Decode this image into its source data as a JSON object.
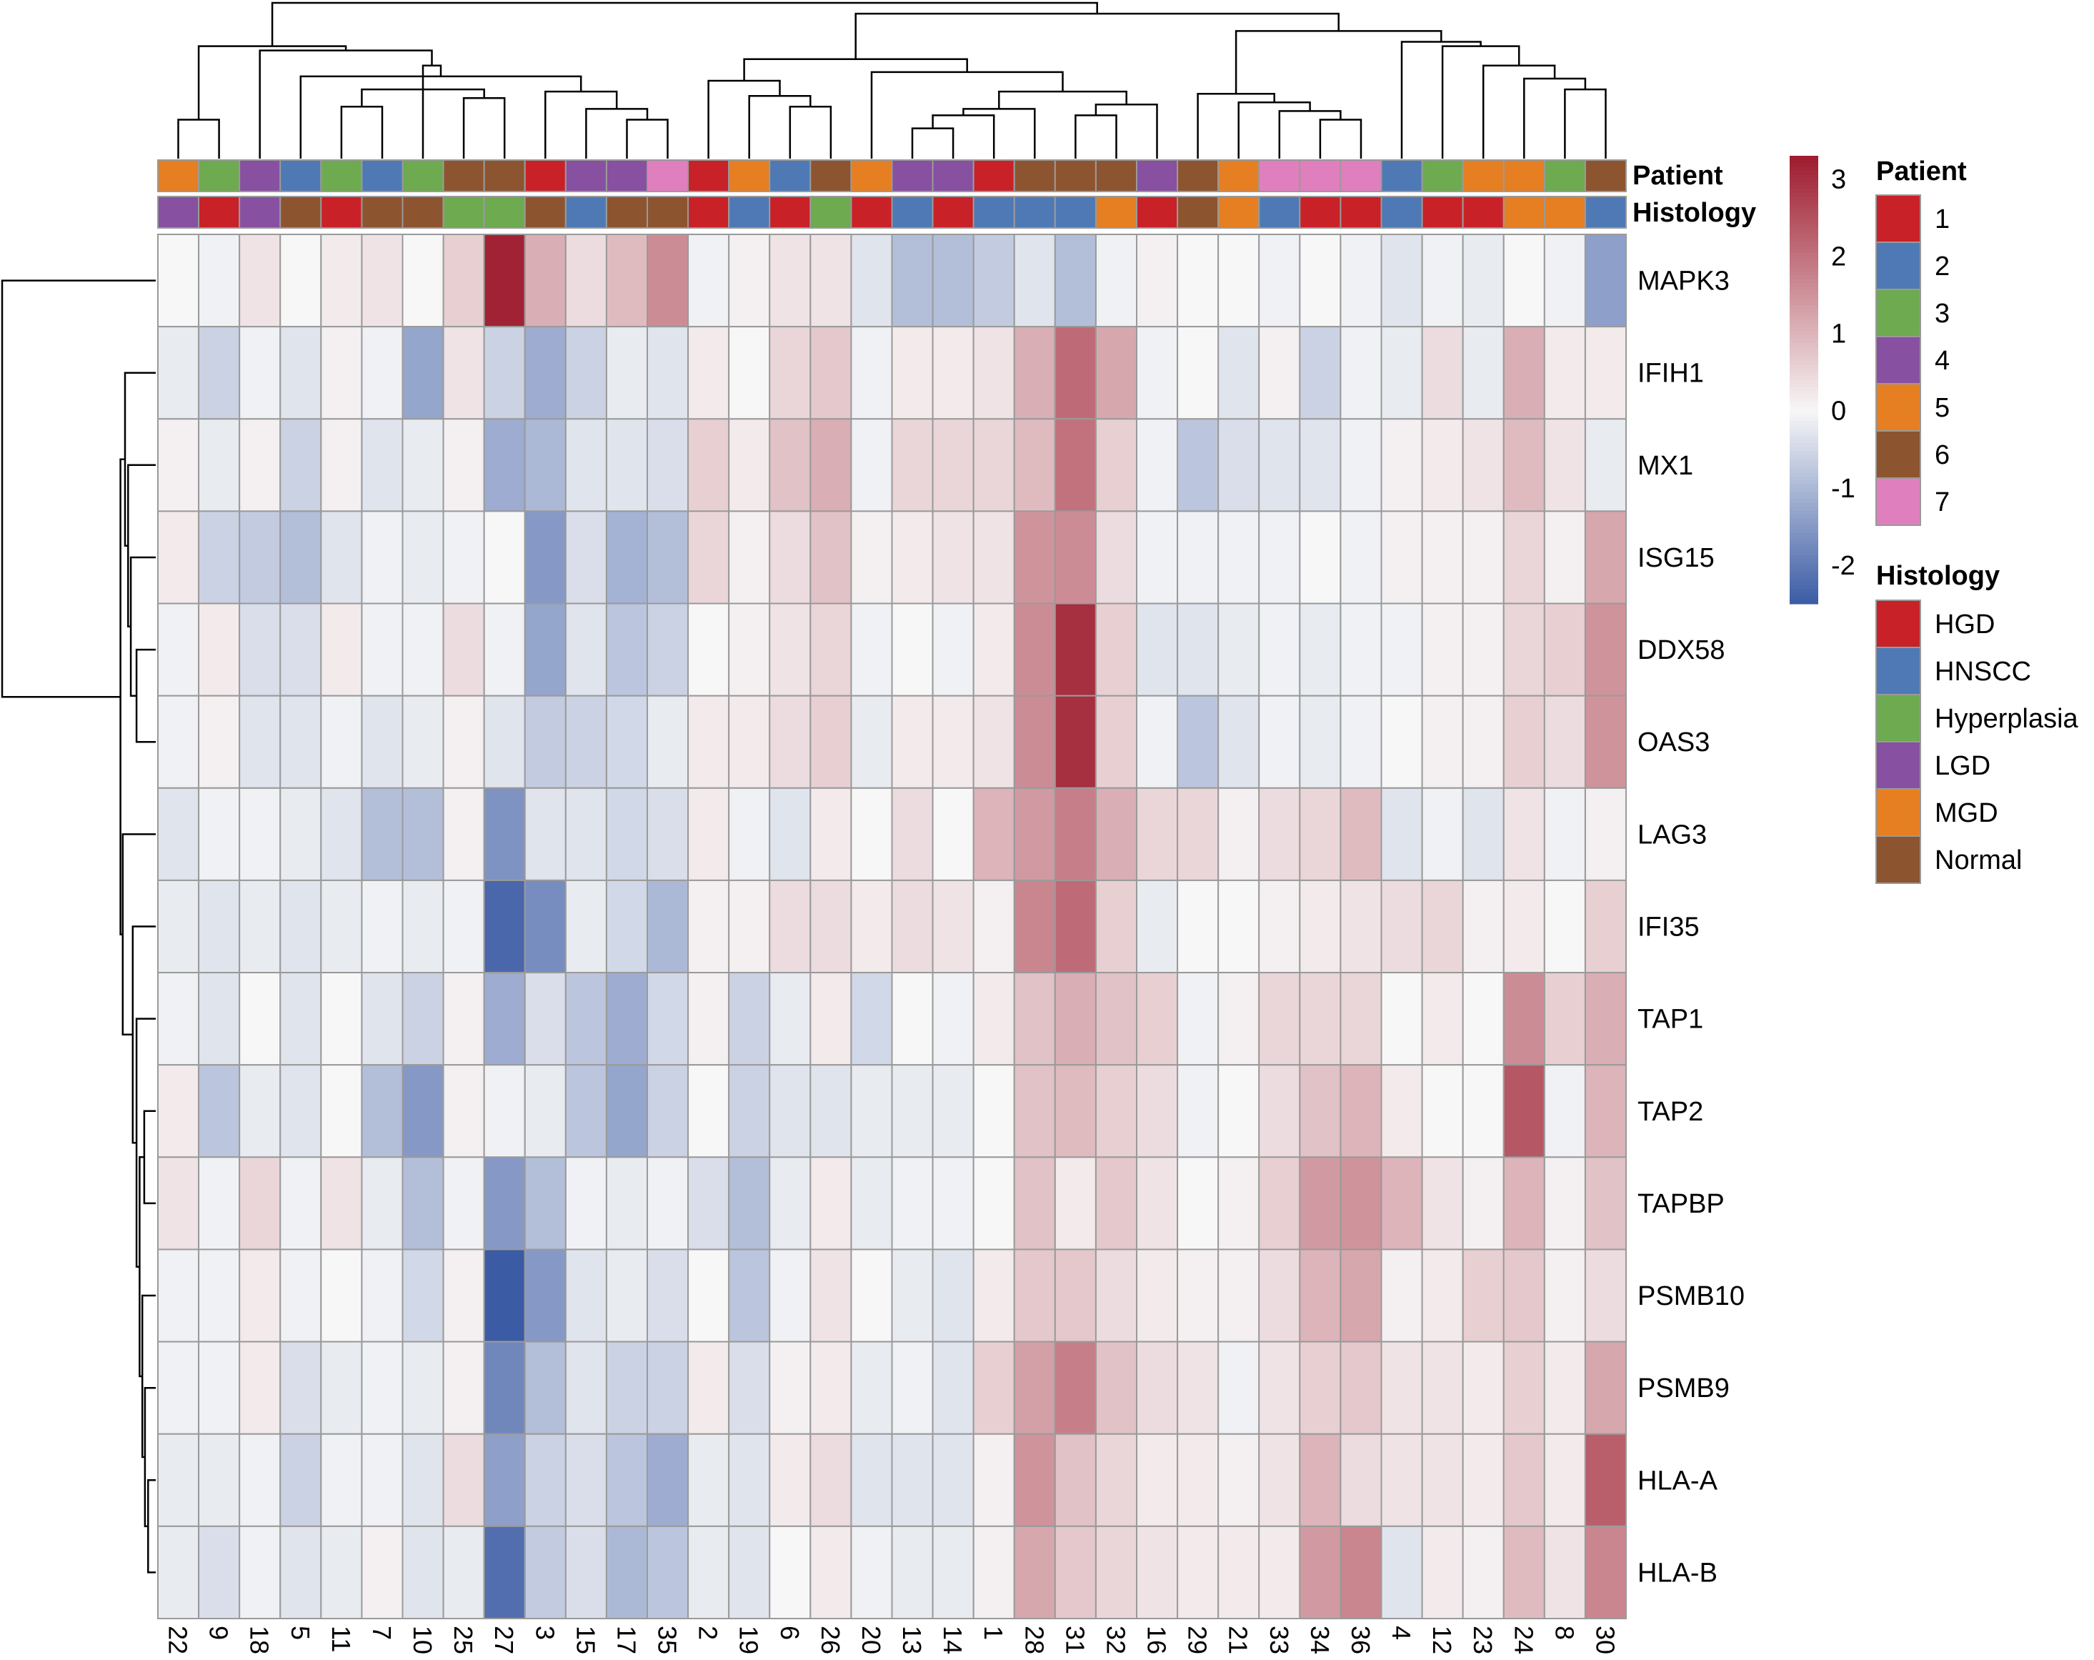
{
  "chart_data": {
    "type": "heatmap",
    "title": "",
    "scale": {
      "min": -2.5,
      "max": 3.3,
      "ticks": [
        3,
        2,
        1,
        0,
        -1,
        -2
      ],
      "low_color": "#3B5BA5",
      "mid_color": "#F7F7F7",
      "high_color": "#9E1B2E"
    },
    "columns": [
      "22",
      "9",
      "18",
      "5",
      "11",
      "7",
      "10",
      "25",
      "27",
      "3",
      "15",
      "17",
      "35",
      "2",
      "19",
      "6",
      "26",
      "20",
      "13",
      "14",
      "1",
      "28",
      "31",
      "32",
      "16",
      "29",
      "21",
      "33",
      "34",
      "36",
      "4",
      "12",
      "23",
      "24",
      "8",
      "30"
    ],
    "rows": [
      "MAPK3",
      "IFIH1",
      "MX1",
      "ISG15",
      "DDX58",
      "OAS3",
      "LAG3",
      "IFI35",
      "TAP1",
      "TAP2",
      "TAPBP",
      "PSMB10",
      "PSMB9",
      "HLA-A",
      "HLA-B"
    ],
    "values": [
      [
        0.0,
        -0.1,
        0.3,
        0.0,
        0.2,
        0.3,
        0.0,
        0.6,
        3.2,
        1.1,
        0.4,
        0.9,
        1.6,
        -0.1,
        0.1,
        0.3,
        0.3,
        -0.3,
        -0.9,
        -0.9,
        -0.7,
        -0.3,
        -0.9,
        -0.1,
        0.1,
        0.0,
        0.0,
        -0.1,
        0.0,
        -0.1,
        -0.3,
        -0.1,
        -0.2,
        0.0,
        -0.1,
        -1.4
      ],
      [
        -0.2,
        -0.6,
        -0.1,
        -0.3,
        0.1,
        -0.1,
        -1.3,
        0.3,
        -0.6,
        -1.2,
        -0.6,
        -0.2,
        -0.3,
        0.2,
        0.0,
        0.5,
        0.7,
        -0.1,
        0.2,
        0.2,
        0.3,
        1.1,
        2.1,
        1.2,
        -0.1,
        0.0,
        -0.3,
        0.1,
        -0.6,
        -0.1,
        -0.2,
        0.4,
        -0.2,
        1.1,
        0.2,
        0.2
      ],
      [
        0.1,
        -0.2,
        0.1,
        -0.6,
        0.1,
        -0.3,
        -0.2,
        0.1,
        -1.2,
        -1.0,
        -0.3,
        -0.3,
        -0.4,
        0.6,
        0.2,
        0.8,
        1.1,
        -0.1,
        0.5,
        0.5,
        0.5,
        0.9,
        2.0,
        0.6,
        -0.1,
        -0.8,
        -0.4,
        -0.3,
        -0.3,
        -0.1,
        0.1,
        0.2,
        0.3,
        0.9,
        0.3,
        -0.2
      ],
      [
        0.2,
        -0.6,
        -0.7,
        -0.9,
        -0.3,
        -0.1,
        -0.2,
        -0.1,
        0.0,
        -1.5,
        -0.4,
        -1.1,
        -0.9,
        0.5,
        0.1,
        0.4,
        0.8,
        0.1,
        0.2,
        0.3,
        0.3,
        1.5,
        1.6,
        0.4,
        -0.1,
        -0.1,
        -0.1,
        -0.1,
        0.0,
        -0.1,
        0.1,
        0.1,
        0.1,
        0.5,
        0.1,
        1.2
      ],
      [
        -0.1,
        0.2,
        -0.4,
        -0.4,
        0.2,
        -0.1,
        -0.1,
        0.4,
        -0.1,
        -1.3,
        -0.3,
        -0.8,
        -0.6,
        0.0,
        0.1,
        0.3,
        0.5,
        -0.1,
        0.0,
        -0.1,
        0.2,
        1.6,
        3.0,
        0.6,
        -0.3,
        -0.3,
        -0.2,
        -0.1,
        -0.2,
        -0.1,
        -0.1,
        0.1,
        0.1,
        0.5,
        0.6,
        1.5
      ],
      [
        -0.1,
        0.1,
        -0.3,
        -0.3,
        -0.1,
        -0.3,
        -0.2,
        0.1,
        -0.3,
        -0.7,
        -0.6,
        -0.5,
        -0.2,
        0.2,
        0.2,
        0.4,
        0.6,
        -0.2,
        0.2,
        0.2,
        0.3,
        1.6,
        3.0,
        0.6,
        -0.1,
        -0.8,
        -0.3,
        -0.1,
        -0.2,
        -0.1,
        0.0,
        0.1,
        0.1,
        0.6,
        0.4,
        1.5
      ],
      [
        -0.3,
        -0.1,
        -0.1,
        -0.2,
        -0.3,
        -0.9,
        -0.9,
        0.1,
        -1.6,
        -0.3,
        -0.3,
        -0.5,
        -0.4,
        0.2,
        -0.1,
        -0.3,
        0.2,
        0.0,
        0.4,
        0.0,
        1.0,
        1.4,
        1.8,
        1.1,
        0.5,
        0.5,
        0.1,
        0.4,
        0.5,
        0.9,
        -0.3,
        -0.1,
        -0.3,
        0.3,
        -0.1,
        0.1
      ],
      [
        -0.2,
        -0.3,
        -0.2,
        -0.3,
        -0.2,
        -0.1,
        -0.2,
        -0.1,
        -2.3,
        -1.7,
        -0.2,
        -0.5,
        -1.0,
        0.1,
        0.1,
        0.4,
        0.4,
        0.2,
        0.4,
        0.3,
        0.1,
        1.7,
        2.1,
        0.6,
        -0.2,
        0.0,
        0.0,
        0.1,
        0.2,
        0.3,
        0.4,
        0.5,
        0.1,
        0.2,
        0.0,
        0.6
      ],
      [
        -0.1,
        -0.3,
        0.0,
        -0.3,
        0.0,
        -0.3,
        -0.6,
        0.1,
        -1.2,
        -0.4,
        -0.8,
        -1.2,
        -0.5,
        0.1,
        -0.6,
        -0.2,
        0.2,
        -0.5,
        0.0,
        -0.1,
        0.2,
        0.8,
        1.1,
        0.8,
        0.6,
        -0.1,
        0.1,
        0.5,
        0.5,
        0.5,
        0.0,
        0.2,
        0.0,
        1.6,
        0.6,
        1.1
      ],
      [
        0.2,
        -0.8,
        -0.2,
        -0.3,
        0.0,
        -0.9,
        -1.5,
        0.1,
        -0.1,
        -0.2,
        -0.8,
        -1.3,
        -0.6,
        0.0,
        -0.6,
        -0.3,
        -0.3,
        -0.2,
        -0.2,
        -0.2,
        0.0,
        0.8,
        0.9,
        0.6,
        0.4,
        -0.1,
        0.0,
        0.4,
        0.8,
        1.0,
        0.2,
        0.0,
        0.0,
        2.4,
        -0.1,
        1.0
      ],
      [
        0.3,
        -0.1,
        0.5,
        -0.1,
        0.3,
        -0.2,
        -0.9,
        -0.1,
        -1.5,
        -0.9,
        -0.1,
        -0.2,
        -0.1,
        -0.4,
        -0.9,
        -0.2,
        0.2,
        -0.2,
        -0.1,
        -0.1,
        0.0,
        0.8,
        0.2,
        0.7,
        0.3,
        0.0,
        0.1,
        0.6,
        1.4,
        1.5,
        1.0,
        0.3,
        0.1,
        1.0,
        0.1,
        0.8
      ],
      [
        -0.1,
        -0.1,
        0.2,
        -0.1,
        0.0,
        -0.1,
        -0.5,
        0.1,
        -2.5,
        -1.5,
        -0.3,
        -0.2,
        -0.4,
        0.0,
        -0.8,
        -0.1,
        0.3,
        0.0,
        -0.2,
        -0.3,
        0.2,
        0.7,
        0.7,
        0.4,
        0.2,
        0.1,
        0.1,
        0.4,
        1.0,
        1.2,
        0.1,
        0.2,
        0.6,
        0.7,
        0.1,
        0.4
      ],
      [
        -0.1,
        -0.1,
        0.2,
        -0.4,
        -0.2,
        -0.1,
        -0.2,
        0.1,
        -1.8,
        -0.9,
        -0.3,
        -0.6,
        -0.6,
        0.2,
        -0.4,
        0.1,
        0.2,
        -0.2,
        -0.1,
        -0.3,
        0.6,
        1.3,
        1.8,
        0.8,
        0.4,
        0.3,
        -0.1,
        0.3,
        0.6,
        0.7,
        0.3,
        0.3,
        0.2,
        0.6,
        0.2,
        1.2
      ],
      [
        -0.2,
        -0.2,
        -0.1,
        -0.6,
        -0.1,
        -0.1,
        -0.3,
        0.4,
        -1.4,
        -0.6,
        -0.4,
        -0.8,
        -1.2,
        -0.2,
        -0.3,
        0.2,
        0.4,
        -0.3,
        -0.3,
        -0.3,
        0.1,
        1.5,
        0.8,
        0.5,
        0.2,
        0.2,
        0.1,
        0.3,
        1.0,
        0.4,
        0.3,
        0.3,
        0.2,
        0.7,
        0.2,
        2.3
      ],
      [
        -0.2,
        -0.4,
        -0.1,
        -0.3,
        -0.2,
        0.1,
        -0.3,
        -0.2,
        -2.2,
        -0.7,
        -0.4,
        -1.0,
        -0.8,
        -0.2,
        -0.3,
        0.0,
        0.2,
        -0.1,
        -0.2,
        -0.2,
        0.1,
        1.2,
        0.7,
        0.5,
        0.3,
        0.2,
        0.2,
        0.2,
        1.4,
        1.7,
        -0.3,
        0.2,
        0.1,
        0.9,
        0.3,
        1.7
      ]
    ],
    "annotations": {
      "patient_colors": {
        "1": "#C82127",
        "2": "#4E79B5",
        "3": "#6EAA4F",
        "4": "#8750A0",
        "5": "#E67E22",
        "6": "#8D5430",
        "7": "#E07FBE"
      },
      "histology_colors": {
        "HGD": "#C82127",
        "HNSCC": "#4E79B5",
        "Hyperplasia": "#6EAA4F",
        "LGD": "#8750A0",
        "MGD": "#E67E22",
        "Normal": "#8D5430"
      },
      "patient": [
        "5",
        "3",
        "4",
        "2",
        "3",
        "2",
        "3",
        "6",
        "6",
        "1",
        "4",
        "4",
        "7",
        "1",
        "5",
        "2",
        "6",
        "5",
        "4",
        "4",
        "1",
        "6",
        "6",
        "6",
        "4",
        "6",
        "5",
        "7",
        "7",
        "7",
        "2",
        "3",
        "5",
        "5",
        "3",
        "6"
      ],
      "histology": [
        "LGD",
        "HGD",
        "LGD",
        "Normal",
        "HGD",
        "Normal",
        "Normal",
        "Hyperplasia",
        "Hyperplasia",
        "Normal",
        "HNSCC",
        "Normal",
        "Normal",
        "HGD",
        "HNSCC",
        "HGD",
        "Hyperplasia",
        "HGD",
        "HNSCC",
        "HGD",
        "HNSCC",
        "HNSCC",
        "HNSCC",
        "MGD",
        "HGD",
        "Normal",
        "MGD",
        "HNSCC",
        "HGD",
        "HGD",
        "HNSCC",
        "HGD",
        "HGD",
        "MGD",
        "MGD",
        "HNSCC"
      ]
    },
    "annotation_labels": {
      "patient": "Patient",
      "histology": "Histology"
    },
    "legends": [
      {
        "title": "Patient",
        "entries": [
          "1",
          "2",
          "3",
          "4",
          "5",
          "6",
          "7"
        ]
      },
      {
        "title": "Histology",
        "entries": [
          "HGD",
          "HNSCC",
          "Hyperplasia",
          "LGD",
          "MGD",
          "Normal"
        ]
      }
    ],
    "column_dendrogram": [
      [
        0,
        1,
        -1
      ],
      [
        11,
        12,
        -1
      ],
      [
        10,
        -2,
        -1
      ],
      [
        9,
        -3,
        -1
      ],
      [
        4,
        5,
        -1
      ],
      [
        7,
        8,
        -1
      ],
      [
        -6,
        -5,
        -1
      ],
      [
        3,
        -4,
        -1
      ],
      [
        6,
        -7,
        -1
      ],
      [
        -8,
        -9,
        -1
      ],
      [
        2,
        -10,
        -1
      ],
      [
        -1,
        -11,
        -1
      ],
      [
        15,
        16,
        -1
      ],
      [
        14,
        -13,
        -1
      ],
      [
        13,
        -14,
        -1
      ],
      [
        18,
        19,
        -1
      ],
      [
        -16,
        20,
        -1
      ],
      [
        -17,
        21,
        -1
      ],
      [
        22,
        23,
        -1
      ],
      [
        -19,
        24,
        -1
      ],
      [
        -18,
        -20,
        -1
      ],
      [
        17,
        -21,
        -1
      ],
      [
        -15,
        -22,
        -1
      ],
      [
        28,
        29,
        -1
      ],
      [
        27,
        -24,
        -1
      ],
      [
        26,
        -25,
        -1
      ],
      [
        25,
        -26,
        -1
      ],
      [
        34,
        35,
        -1
      ],
      [
        33,
        -28,
        -1
      ],
      [
        32,
        -29,
        -1
      ],
      [
        31,
        -30,
        -1
      ],
      [
        30,
        -31,
        -1
      ],
      [
        -27,
        -32,
        -1
      ],
      [
        -23,
        -33,
        -1
      ],
      [
        -12,
        -34,
        -1
      ]
    ],
    "column_dendrogram_heights": [
      0.9,
      0.9,
      1.15,
      1.55,
      1.2,
      1.4,
      1.6,
      1.9,
      1.8,
      2.15,
      2.5,
      2.6,
      1.2,
      1.45,
      1.8,
      0.7,
      1.0,
      1.15,
      1.0,
      1.25,
      1.55,
      2.0,
      2.3,
      0.9,
      1.1,
      1.3,
      1.5,
      1.6,
      1.85,
      2.15,
      2.6,
      2.7,
      2.95,
      3.35,
      3.6
    ],
    "row_dendrogram": [
      [
        13,
        14,
        -1
      ],
      [
        12,
        -1,
        -1
      ],
      [
        11,
        -2,
        -1
      ],
      [
        9,
        10,
        -1
      ],
      [
        -3,
        -4,
        -1
      ],
      [
        8,
        -5,
        -1
      ],
      [
        7,
        -6,
        -1
      ],
      [
        4,
        5,
        -1
      ],
      [
        3,
        -8,
        -1
      ],
      [
        2,
        -9,
        -1
      ],
      [
        1,
        -10,
        -1
      ],
      [
        6,
        -7,
        -1
      ],
      [
        -11,
        -12,
        -1
      ],
      [
        0,
        -13,
        -1
      ]
    ],
    "row_dendrogram_heights": [
      0.2,
      0.28,
      0.35,
      0.3,
      0.42,
      0.5,
      0.6,
      0.5,
      0.65,
      0.72,
      0.8,
      0.86,
      0.92,
      4.0
    ]
  }
}
